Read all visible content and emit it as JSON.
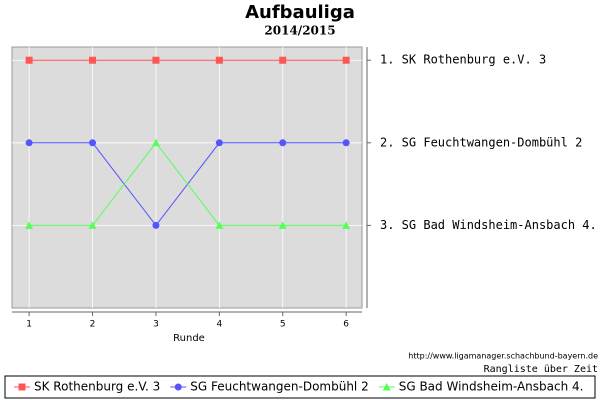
{
  "chart_data": {
    "type": "line",
    "title": "Aufbauliga",
    "subtitle": "2014/2015",
    "x_label": "Runde",
    "x": [
      1,
      2,
      3,
      4,
      5,
      6
    ],
    "xlim": [
      0.73,
      6.25
    ],
    "xticks": [
      1,
      2,
      3,
      4,
      5,
      6
    ],
    "ylim": [
      4,
      0.84
    ],
    "inverted_y": true,
    "y_axis_side": "right",
    "yticks": [
      {
        "value": 1,
        "label": "1. SK Rothenburg e.V. 3"
      },
      {
        "value": 2,
        "label": "2. SG Feuchtwangen-Dombühl 2"
      },
      {
        "value": 3,
        "label": "3. SG Bad Windsheim-Ansbach 4."
      }
    ],
    "grid": true,
    "legend": "bottom",
    "source": "http://www.ligamanager.schachbund-bayern.de",
    "note": "Rangliste über Zeit",
    "series": [
      {
        "name": "SK Rothenburg e.V. 3",
        "color": "#ff5555",
        "marker": "square",
        "values": [
          1,
          1,
          1,
          1,
          1,
          1
        ]
      },
      {
        "name": "SG Feuchtwangen-Dombühl 2",
        "color": "#5555ff",
        "marker": "circle",
        "values": [
          2,
          2,
          3,
          2,
          2,
          2
        ]
      },
      {
        "name": "SG Bad Windsheim-Ansbach 4.",
        "color": "#55ff55",
        "marker": "triangle",
        "values": [
          3,
          3,
          2,
          3,
          3,
          3
        ]
      }
    ]
  }
}
